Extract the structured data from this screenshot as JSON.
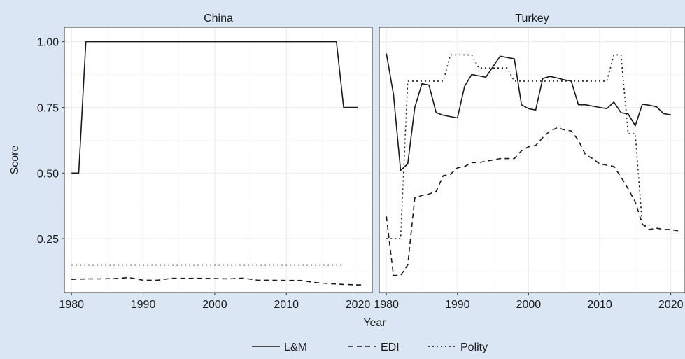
{
  "chart_data": {
    "type": "line",
    "xlabel": "Year",
    "ylabel": "Score",
    "xlim": [
      1979,
      2022
    ],
    "ylim": [
      0.045,
      1.055
    ],
    "x_ticks": [
      1980,
      1990,
      2000,
      2010,
      2020
    ],
    "y_ticks": [
      0.25,
      0.5,
      0.75,
      1.0
    ],
    "y_tick_labels": [
      "0.25",
      "0.50",
      "0.75",
      "1.00"
    ],
    "grid": true,
    "legend_position": "bottom",
    "legend": [
      {
        "name": "L&M",
        "style": "solid"
      },
      {
        "name": "EDI",
        "style": "dashed"
      },
      {
        "name": "Polity",
        "style": "dotted"
      }
    ],
    "panels": [
      {
        "title": "China",
        "series": [
          {
            "name": "L&M",
            "style": "solid",
            "x": [
              1980,
              1981,
              1982,
              2017,
              2018,
              2019,
              2020
            ],
            "y": [
              0.5,
              0.5,
              1.0,
              1.0,
              0.75,
              0.75,
              0.75
            ]
          },
          {
            "name": "EDI",
            "style": "dashed",
            "x": [
              1980,
              1982,
              1984,
              1986,
              1988,
              1990,
              1992,
              1994,
              1996,
              1998,
              2000,
              2002,
              2004,
              2006,
              2008,
              2010,
              2012,
              2014,
              2016,
              2018,
              2020,
              2021
            ],
            "y": [
              0.095,
              0.097,
              0.097,
              0.098,
              0.102,
              0.092,
              0.092,
              0.099,
              0.099,
              0.099,
              0.098,
              0.097,
              0.1,
              0.092,
              0.092,
              0.091,
              0.091,
              0.083,
              0.079,
              0.076,
              0.074,
              0.074
            ]
          },
          {
            "name": "Polity",
            "style": "dotted",
            "x": [
              1980,
              2018
            ],
            "y": [
              0.15,
              0.15
            ]
          }
        ]
      },
      {
        "title": "Turkey",
        "series": [
          {
            "name": "L&M",
            "style": "solid",
            "x": [
              1980,
              1981,
              1982,
              1983,
              1984,
              1985,
              1986,
              1987,
              1988,
              1989,
              1990,
              1991,
              1992,
              1993,
              1994,
              1995,
              1996,
              1997,
              1998,
              1999,
              2000,
              2001,
              2002,
              2003,
              2004,
              2005,
              2006,
              2007,
              2008,
              2009,
              2010,
              2011,
              2012,
              2013,
              2014,
              2015,
              2016,
              2017,
              2018,
              2019,
              2020
            ],
            "y": [
              0.955,
              0.8,
              0.51,
              0.535,
              0.75,
              0.84,
              0.835,
              0.73,
              0.72,
              0.715,
              0.71,
              0.83,
              0.875,
              0.87,
              0.865,
              0.905,
              0.945,
              0.94,
              0.935,
              0.76,
              0.745,
              0.74,
              0.86,
              0.868,
              0.862,
              0.855,
              0.85,
              0.76,
              0.76,
              0.755,
              0.75,
              0.745,
              0.77,
              0.73,
              0.725,
              0.68,
              0.762,
              0.758,
              0.752,
              0.726,
              0.722
            ]
          },
          {
            "name": "EDI",
            "style": "dashed",
            "x": [
              1980,
              1981,
              1982,
              1983,
              1984,
              1985,
              1986,
              1987,
              1988,
              1989,
              1990,
              1991,
              1992,
              1993,
              1994,
              1995,
              1996,
              1997,
              1998,
              1999,
              2000,
              2001,
              2002,
              2003,
              2004,
              2005,
              2006,
              2007,
              2008,
              2009,
              2010,
              2011,
              2012,
              2013,
              2014,
              2015,
              2016,
              2017,
              2018,
              2019,
              2020,
              2021
            ],
            "y": [
              0.335,
              0.11,
              0.11,
              0.15,
              0.405,
              0.415,
              0.42,
              0.43,
              0.49,
              0.495,
              0.52,
              0.525,
              0.54,
              0.54,
              0.545,
              0.55,
              0.555,
              0.555,
              0.555,
              0.585,
              0.6,
              0.605,
              0.635,
              0.66,
              0.672,
              0.665,
              0.66,
              0.625,
              0.57,
              0.555,
              0.535,
              0.53,
              0.525,
              0.485,
              0.44,
              0.39,
              0.305,
              0.285,
              0.29,
              0.285,
              0.285,
              0.28
            ]
          },
          {
            "name": "Polity",
            "style": "dotted",
            "x": [
              1980,
              1981,
              1982,
              1983,
              1984,
              1985,
              1986,
              1987,
              1988,
              1989,
              1990,
              1991,
              1992,
              1993,
              1994,
              1995,
              1996,
              1997,
              1998,
              1999,
              2000,
              2001,
              2002,
              2003,
              2004,
              2005,
              2006,
              2007,
              2008,
              2009,
              2010,
              2011,
              2012,
              2013,
              2014,
              2015,
              2016,
              2017
            ],
            "y": [
              0.25,
              0.25,
              0.25,
              0.85,
              0.85,
              0.85,
              0.85,
              0.85,
              0.85,
              0.95,
              0.95,
              0.95,
              0.95,
              0.9,
              0.9,
              0.9,
              0.9,
              0.9,
              0.85,
              0.85,
              0.85,
              0.85,
              0.85,
              0.85,
              0.85,
              0.85,
              0.85,
              0.85,
              0.85,
              0.85,
              0.85,
              0.85,
              0.95,
              0.95,
              0.65,
              0.65,
              0.3,
              0.3
            ]
          }
        ]
      }
    ]
  }
}
